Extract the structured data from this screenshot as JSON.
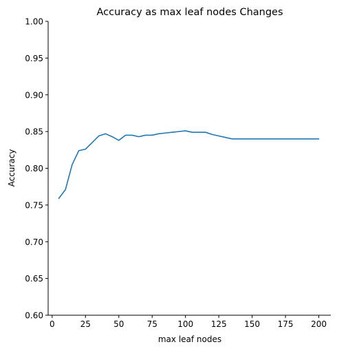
{
  "chart_data": {
    "type": "line",
    "title": "Accuracy as max leaf nodes Changes",
    "xlabel": "max leaf nodes",
    "ylabel": "Accuracy",
    "xlim": [
      -3,
      209
    ],
    "ylim": [
      0.6,
      1.0
    ],
    "xticks": [
      0,
      25,
      50,
      75,
      100,
      125,
      150,
      175,
      200
    ],
    "yticks": [
      0.6,
      0.65,
      0.7,
      0.75,
      0.8,
      0.85,
      0.9,
      0.95,
      1.0
    ],
    "grid": false,
    "series": [
      {
        "color": "#1f77b4",
        "x": [
          5,
          10,
          15,
          20,
          25,
          30,
          35,
          40,
          45,
          50,
          55,
          60,
          65,
          70,
          75,
          80,
          85,
          90,
          95,
          100,
          105,
          110,
          115,
          120,
          125,
          130,
          135,
          140,
          145,
          150,
          155,
          160,
          165,
          170,
          175,
          180,
          185,
          190,
          195,
          200
        ],
        "y": [
          0.759,
          0.771,
          0.805,
          0.824,
          0.826,
          0.835,
          0.844,
          0.847,
          0.843,
          0.838,
          0.845,
          0.845,
          0.843,
          0.845,
          0.845,
          0.847,
          0.848,
          0.849,
          0.85,
          0.851,
          0.849,
          0.849,
          0.849,
          0.846,
          0.844,
          0.842,
          0.84,
          0.84,
          0.84,
          0.84,
          0.84,
          0.84,
          0.84,
          0.84,
          0.84,
          0.84,
          0.84,
          0.84,
          0.84,
          0.84
        ]
      }
    ]
  }
}
